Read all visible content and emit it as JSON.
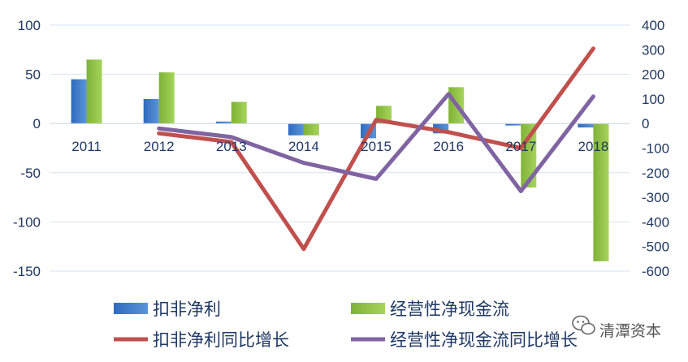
{
  "chart_data": {
    "type": "bar",
    "categories": [
      "2011",
      "2012",
      "2013",
      "2014",
      "2015",
      "2016",
      "2017",
      "2018"
    ],
    "series": [
      {
        "name": "扣非净利",
        "kind": "bar",
        "axis": "left",
        "color": "#3a74c4",
        "values": [
          45,
          25,
          2,
          -12,
          -15,
          -10,
          -2,
          -4
        ]
      },
      {
        "name": "经营性净现金流",
        "kind": "bar",
        "axis": "left",
        "color": "#8fc043",
        "values": [
          65,
          52,
          22,
          -12,
          18,
          37,
          -65,
          -140
        ]
      },
      {
        "name": "扣非净利同比增长",
        "kind": "line",
        "axis": "right",
        "color": "#c0504d",
        "values": [
          null,
          -40,
          -75,
          -510,
          15,
          -35,
          -100,
          305
        ]
      },
      {
        "name": "经营性净现金流同比增长",
        "kind": "line",
        "axis": "right",
        "color": "#8064a2",
        "values": [
          null,
          -20,
          -55,
          -160,
          -225,
          120,
          -275,
          110
        ]
      }
    ],
    "left_axis": {
      "min": -150,
      "max": 100,
      "ticks": [
        "100",
        "50",
        "0",
        "-50",
        "-100",
        "-150"
      ]
    },
    "right_axis": {
      "min": -600,
      "max": 400,
      "ticks": [
        "400",
        "300",
        "200",
        "100",
        "0",
        "-100",
        "-200",
        "-300",
        "-400",
        "-500",
        "-600"
      ]
    },
    "grid": true,
    "legend_position": "bottom"
  },
  "watermark": {
    "text": "清潭资本",
    "icon": "wechat-icon"
  }
}
